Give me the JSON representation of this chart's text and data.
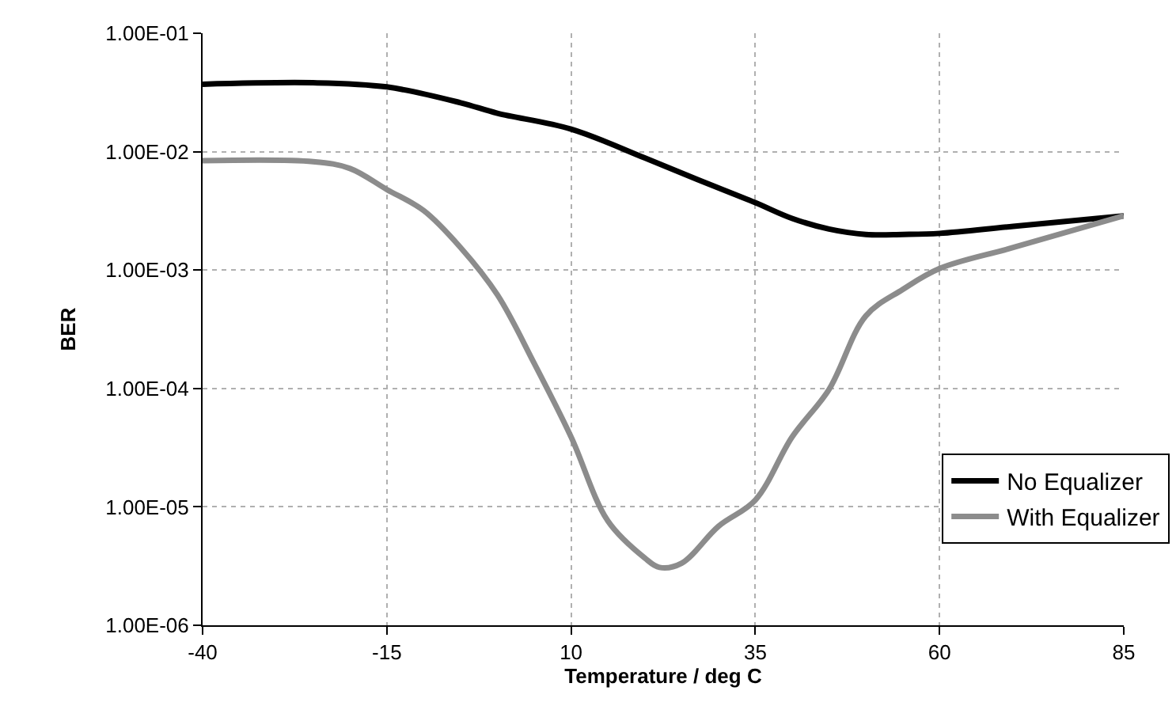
{
  "chart_data": {
    "type": "line",
    "xlabel": "Temperature / deg C",
    "ylabel": "BER",
    "log": "y",
    "xlim": [
      -40,
      85
    ],
    "xticks": [
      -40,
      -15,
      10,
      35,
      60,
      85
    ],
    "ylim": [
      1e-06,
      0.1
    ],
    "yticks": [
      {
        "value": 1e-06,
        "label": "1.00E-06"
      },
      {
        "value": 1e-05,
        "label": "1.00E-05"
      },
      {
        "value": 0.0001,
        "label": "1.00E-04"
      },
      {
        "value": 0.001,
        "label": "1.00E-03"
      },
      {
        "value": 0.01,
        "label": "1.00E-02"
      },
      {
        "value": 0.1,
        "label": "1.00E-01"
      }
    ],
    "grid": true,
    "legend": "bottom right",
    "marker": "none",
    "line_style": "solid",
    "series": [
      {
        "name": "No Equalizer",
        "color": "#000000",
        "x": [
          -40,
          -25,
          -15,
          -5,
          0,
          10,
          20,
          27,
          35,
          40,
          45,
          50,
          55,
          60,
          70,
          85
        ],
        "values": [
          0.0371,
          0.0382,
          0.0352,
          0.0259,
          0.0211,
          0.0155,
          0.00885,
          0.00587,
          0.00371,
          0.00273,
          0.00222,
          0.002,
          0.002,
          0.00204,
          0.00234,
          0.00287
        ]
      },
      {
        "name": "With Equalizer",
        "color": "#8c8c8c",
        "x": [
          -40,
          -25,
          -20,
          -15,
          -10,
          -5,
          0,
          5,
          10,
          15,
          20,
          22,
          25,
          30,
          35,
          40,
          45,
          50,
          55,
          60,
          70,
          85
        ],
        "values": [
          0.00839,
          0.00824,
          0.00721,
          0.00479,
          0.00318,
          0.00155,
          0.000618,
          0.000163,
          3.9e-05,
          7.6e-06,
          3.7e-06,
          3.08e-06,
          3.34e-06,
          6.85e-06,
          1.14e-05,
          3.9e-05,
          9.8e-05,
          0.00041,
          0.000685,
          0.00103,
          0.00155,
          0.00287
        ]
      }
    ]
  }
}
